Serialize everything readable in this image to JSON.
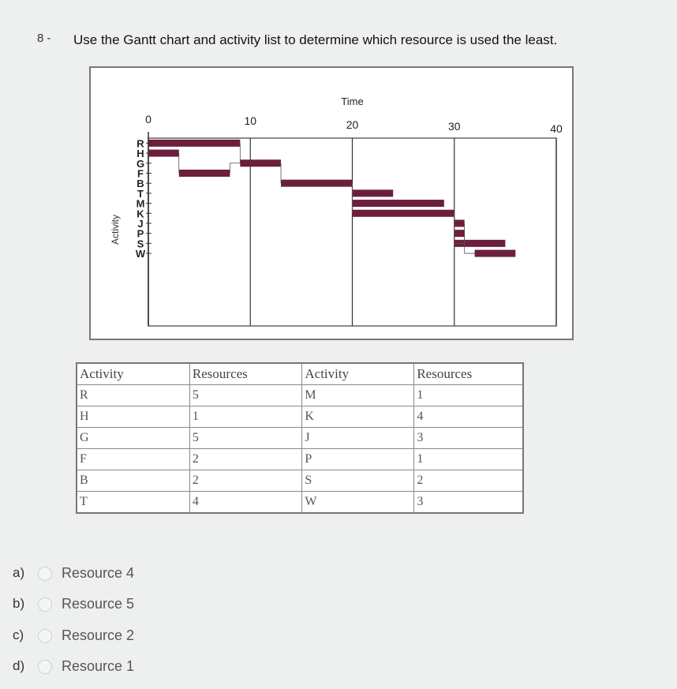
{
  "question": {
    "number": "8 -",
    "text": "Use the Gantt chart and activity list to determine which resource is used the least."
  },
  "chart_data": {
    "type": "gantt",
    "xlabel": "Time",
    "ylabel": "Activity",
    "xticks": [
      "0",
      "10",
      "20",
      "30",
      "40"
    ],
    "xlim": [
      0,
      40
    ],
    "activities": [
      {
        "name": "R",
        "start": 0,
        "end": 9
      },
      {
        "name": "H",
        "start": 0,
        "end": 3
      },
      {
        "name": "G",
        "start": 9,
        "end": 13
      },
      {
        "name": "F",
        "start": 3,
        "end": 8
      },
      {
        "name": "B",
        "start": 13,
        "end": 20
      },
      {
        "name": "T",
        "start": 20,
        "end": 24
      },
      {
        "name": "M",
        "start": 20,
        "end": 29
      },
      {
        "name": "K",
        "start": 20,
        "end": 30
      },
      {
        "name": "J",
        "start": 30,
        "end": 31
      },
      {
        "name": "P",
        "start": 30,
        "end": 31
      },
      {
        "name": "S",
        "start": 30,
        "end": 35
      },
      {
        "name": "W",
        "start": 32,
        "end": 36
      }
    ]
  },
  "table": {
    "headers": [
      "Activity",
      "Resources",
      "Activity",
      "Resources"
    ],
    "rows": [
      [
        "R",
        "5",
        "M",
        "1"
      ],
      [
        "H",
        "1",
        "K",
        "4"
      ],
      [
        "G",
        "5",
        "J",
        "3"
      ],
      [
        "F",
        "2",
        "P",
        "1"
      ],
      [
        "B",
        "2",
        "S",
        "2"
      ],
      [
        "T",
        "4",
        "W",
        "3"
      ]
    ]
  },
  "options": [
    {
      "letter": "a)",
      "label": "Resource 4"
    },
    {
      "letter": "b)",
      "label": "Resource 5"
    },
    {
      "letter": "c)",
      "label": "Resource 2"
    },
    {
      "letter": "d)",
      "label": "Resource 1"
    }
  ],
  "colors": {
    "bar": "#6b1f3c",
    "grid": "#3a3a3a"
  }
}
